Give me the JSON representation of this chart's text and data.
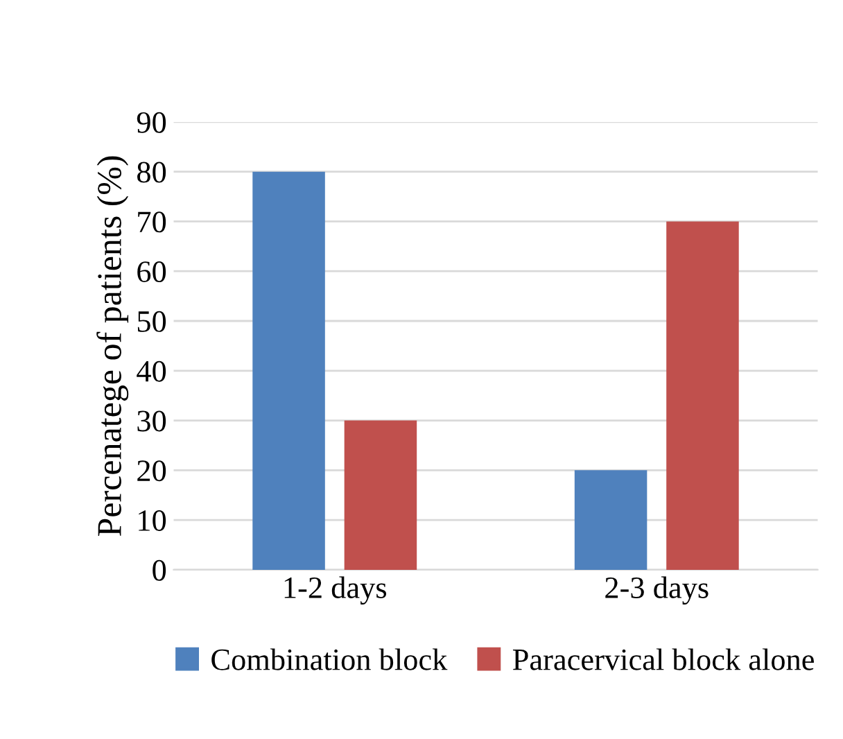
{
  "chart_data": {
    "type": "bar",
    "ylabel": "Percenatege of patients (%)",
    "categories": [
      "1-2 days",
      "2-3 days"
    ],
    "series": [
      {
        "name": "Combination block",
        "color": "#4f81bd",
        "values": [
          80,
          20
        ]
      },
      {
        "name": "Paracervical block alone",
        "color": "#c0504d",
        "values": [
          30,
          70
        ]
      }
    ],
    "ylim": [
      0,
      90
    ],
    "yticks": [
      0,
      10,
      20,
      30,
      40,
      50,
      60,
      70,
      80,
      90
    ],
    "grid": "y",
    "legend": "bottom"
  }
}
